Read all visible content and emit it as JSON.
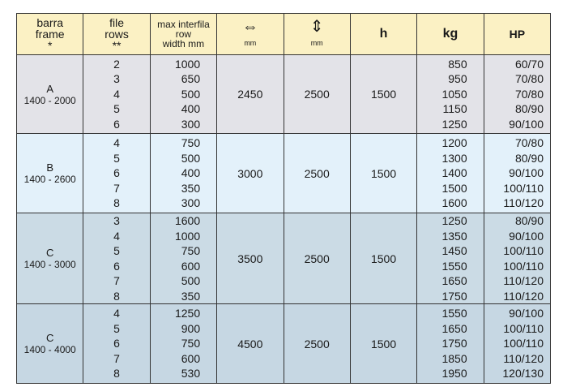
{
  "headers": {
    "frame": [
      "barra",
      "frame",
      "*"
    ],
    "rows": [
      "file",
      "rows",
      "**"
    ],
    "width": [
      "max interfila",
      "row",
      "width mm"
    ],
    "length": {
      "icon": "horizontal-double-arrow-icon",
      "unit": "mm"
    },
    "height_dim": {
      "icon": "vertical-double-arrow-icon",
      "unit": "mm"
    },
    "h": "h",
    "kg": "kg",
    "hp": "HP"
  },
  "sections": [
    {
      "frame": "A",
      "range": "1400 - 2000",
      "rows": [
        "2",
        "3",
        "4",
        "5",
        "6"
      ],
      "width": [
        "1000",
        "650",
        "500",
        "400",
        "300"
      ],
      "length": "2450",
      "height": "2500",
      "h": "1500",
      "kg": [
        "850",
        "950",
        "1050",
        "1150",
        "1250"
      ],
      "hp": [
        "60/70",
        "70/80",
        "70/80",
        "80/90",
        "90/100"
      ]
    },
    {
      "frame": "B",
      "range": "1400 - 2600",
      "rows": [
        "4",
        "5",
        "6",
        "7",
        "8"
      ],
      "width": [
        "750",
        "500",
        "400",
        "350",
        "300"
      ],
      "length": "3000",
      "height": "2500",
      "h": "1500",
      "kg": [
        "1200",
        "1300",
        "1400",
        "1500",
        "1600"
      ],
      "hp": [
        "70/80",
        "80/90",
        "90/100",
        "100/110",
        "110/120"
      ]
    },
    {
      "frame": "C",
      "range": "1400 - 3000",
      "rows": [
        "3",
        "4",
        "5",
        "6",
        "7",
        "8"
      ],
      "width": [
        "1600",
        "1000",
        "750",
        "600",
        "500",
        "350"
      ],
      "length": "3500",
      "height": "2500",
      "h": "1500",
      "kg": [
        "1250",
        "1350",
        "1450",
        "1550",
        "1650",
        "1750"
      ],
      "hp": [
        "80/90",
        "90/100",
        "100/110",
        "100/110",
        "110/120",
        "110/120"
      ]
    },
    {
      "frame": "C",
      "range": "1400 - 4000",
      "rows": [
        "4",
        "5",
        "6",
        "7",
        "8"
      ],
      "width": [
        "1250",
        "900",
        "750",
        "600",
        "530"
      ],
      "length": "4500",
      "height": "2500",
      "h": "1500",
      "kg": [
        "1550",
        "1650",
        "1750",
        "1850",
        "1950"
      ],
      "hp": [
        "90/100",
        "100/110",
        "100/110",
        "110/120",
        "120/130"
      ]
    }
  ]
}
